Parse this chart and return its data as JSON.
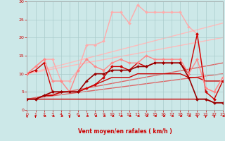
{
  "xlabel": "Vent moyen/en rafales ( km/h )",
  "xlim": [
    0,
    23
  ],
  "ylim": [
    0,
    30
  ],
  "xticks": [
    0,
    1,
    2,
    3,
    4,
    5,
    6,
    7,
    8,
    9,
    10,
    11,
    12,
    13,
    14,
    15,
    16,
    17,
    18,
    19,
    20,
    21,
    22,
    23
  ],
  "yticks": [
    0,
    5,
    10,
    15,
    20,
    25,
    30
  ],
  "bg_color": "#cce8e8",
  "grid_color": "#aacccc",
  "series": [
    {
      "x": [
        0,
        23
      ],
      "y": [
        10,
        24
      ],
      "color": "#ffbbbb",
      "lw": 1.0,
      "marker": null,
      "zorder": 1
    },
    {
      "x": [
        0,
        23
      ],
      "y": [
        10,
        20
      ],
      "color": "#ffbbbb",
      "lw": 1.0,
      "marker": null,
      "zorder": 1
    },
    {
      "x": [
        0,
        23
      ],
      "y": [
        3,
        13
      ],
      "color": "#dd6666",
      "lw": 1.0,
      "marker": null,
      "zorder": 1
    },
    {
      "x": [
        0,
        23
      ],
      "y": [
        3,
        10
      ],
      "color": "#dd6666",
      "lw": 1.0,
      "marker": null,
      "zorder": 1
    },
    {
      "x": [
        0,
        1,
        2,
        3,
        4,
        5,
        6,
        7,
        8,
        9,
        10,
        11,
        12,
        13,
        14,
        15,
        16,
        17,
        18,
        19,
        20,
        21,
        22,
        23
      ],
      "y": [
        3,
        3,
        3,
        3,
        3,
        3,
        3,
        3,
        3,
        3,
        3,
        3,
        3,
        3,
        3,
        3,
        3,
        3,
        3,
        3,
        3,
        3,
        2,
        2
      ],
      "color": "#cc0000",
      "lw": 1.0,
      "marker": null,
      "zorder": 2
    },
    {
      "x": [
        0,
        1,
        2,
        3,
        4,
        5,
        6,
        7,
        8,
        9,
        10,
        11,
        12,
        13,
        14,
        15,
        16,
        17,
        18,
        19,
        20,
        21,
        22,
        23
      ],
      "y": [
        3,
        3,
        4,
        4,
        5,
        5,
        5,
        6,
        7,
        8,
        9,
        9,
        9,
        10,
        10,
        10,
        10,
        10,
        10,
        9,
        9,
        8,
        8,
        8
      ],
      "color": "#cc0000",
      "lw": 1.0,
      "marker": null,
      "zorder": 2
    },
    {
      "x": [
        0,
        1,
        2,
        3,
        4,
        5,
        6,
        7,
        8,
        9,
        10,
        11,
        12,
        13,
        14,
        15,
        16,
        17,
        18,
        19,
        20,
        21,
        22,
        23
      ],
      "y": [
        3,
        3,
        4,
        5,
        5,
        5,
        5,
        8,
        10,
        10,
        11,
        11,
        11,
        12,
        12,
        13,
        13,
        13,
        13,
        9,
        3,
        3,
        2,
        2
      ],
      "color": "#990000",
      "lw": 1.2,
      "marker": "D",
      "ms": 2.0,
      "zorder": 4
    },
    {
      "x": [
        0,
        1,
        2,
        3,
        4,
        5,
        6,
        7,
        8,
        9,
        10,
        11,
        12,
        13,
        14,
        15,
        16,
        17,
        18,
        19,
        20,
        21,
        22,
        23
      ],
      "y": [
        10,
        11,
        13,
        5,
        5,
        5,
        5,
        6,
        7,
        9,
        12,
        12,
        11,
        13,
        12,
        13,
        13,
        13,
        13,
        10,
        21,
        5,
        3,
        8
      ],
      "color": "#cc0000",
      "lw": 1.0,
      "marker": "D",
      "ms": 2.0,
      "zorder": 3
    },
    {
      "x": [
        0,
        1,
        2,
        3,
        4,
        5,
        6,
        7,
        8,
        9,
        10,
        11,
        12,
        13,
        14,
        15,
        16,
        17,
        18,
        19,
        20,
        21,
        22,
        23
      ],
      "y": [
        10,
        12,
        14,
        8,
        8,
        5,
        11,
        14,
        12,
        11,
        13,
        14,
        13,
        13,
        15,
        14,
        14,
        14,
        14,
        10,
        14,
        6,
        5,
        9
      ],
      "color": "#ff8888",
      "lw": 1.0,
      "marker": "D",
      "ms": 2.0,
      "zorder": 3
    },
    {
      "x": [
        0,
        1,
        2,
        3,
        4,
        5,
        6,
        7,
        8,
        9,
        10,
        11,
        12,
        13,
        14,
        15,
        16,
        17,
        18,
        19,
        20,
        21,
        22,
        23
      ],
      "y": [
        10,
        12,
        14,
        14,
        8,
        8,
        11,
        18,
        18,
        19,
        27,
        27,
        24,
        29,
        27,
        27,
        27,
        27,
        27,
        23,
        21,
        6,
        5,
        9
      ],
      "color": "#ffaaaa",
      "lw": 1.0,
      "marker": "D",
      "ms": 2.0,
      "zorder": 2
    }
  ],
  "wind_arrows": {
    "x": [
      0,
      1,
      2,
      3,
      4,
      5,
      6,
      7,
      8,
      9,
      10,
      11,
      12,
      13,
      14,
      15,
      16,
      17,
      18,
      19,
      20,
      21,
      22,
      23
    ],
    "angles_deg": [
      270,
      270,
      225,
      225,
      225,
      270,
      225,
      225,
      225,
      225,
      225,
      225,
      225,
      225,
      225,
      225,
      225,
      225,
      225,
      225,
      270,
      270,
      270,
      225
    ],
    "color": "#cc0000"
  },
  "tick_color": "#cc0000",
  "label_color": "#cc0000"
}
